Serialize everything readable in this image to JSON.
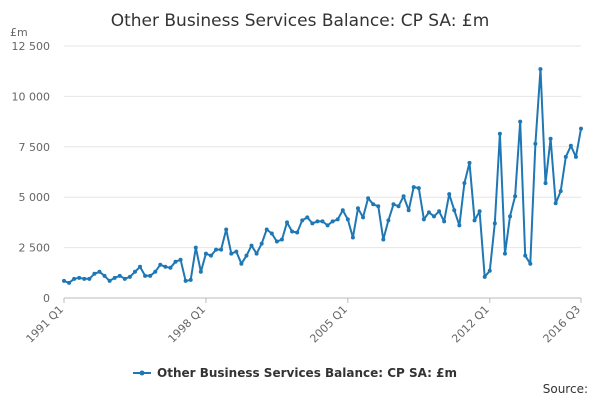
{
  "chart_data": {
    "type": "line",
    "title": "Other Business Services Balance: CP SA: £m",
    "ylabel": "£m",
    "ylim": [
      0,
      12500
    ],
    "yticks": [
      0,
      2500,
      5000,
      7500,
      10000,
      12500
    ],
    "ytick_labels": [
      "0",
      "2 500",
      "5 000",
      "7 500",
      "10 000",
      "12 500"
    ],
    "xticks": [
      "1991 Q1",
      "1998 Q1",
      "2005 Q1",
      "2012 Q1",
      "2016 Q3"
    ],
    "xtick_index": [
      0,
      28,
      56,
      84,
      102
    ],
    "grid": true,
    "legend_position": "bottom",
    "color": "#1f77b4",
    "series": [
      {
        "name": "Other Business Services Balance: CP SA: £m",
        "x": [
          "1991 Q1",
          "1991 Q2",
          "1991 Q3",
          "1991 Q4",
          "1992 Q1",
          "1992 Q2",
          "1992 Q3",
          "1992 Q4",
          "1993 Q1",
          "1993 Q2",
          "1993 Q3",
          "1993 Q4",
          "1994 Q1",
          "1994 Q2",
          "1994 Q3",
          "1994 Q4",
          "1995 Q1",
          "1995 Q2",
          "1995 Q3",
          "1995 Q4",
          "1996 Q1",
          "1996 Q2",
          "1996 Q3",
          "1996 Q4",
          "1997 Q1",
          "1997 Q2",
          "1997 Q3",
          "1997 Q4",
          "1998 Q1",
          "1998 Q2",
          "1998 Q3",
          "1998 Q4",
          "1999 Q1",
          "1999 Q2",
          "1999 Q3",
          "1999 Q4",
          "2000 Q1",
          "2000 Q2",
          "2000 Q3",
          "2000 Q4",
          "2001 Q1",
          "2001 Q2",
          "2001 Q3",
          "2001 Q4",
          "2002 Q1",
          "2002 Q2",
          "2002 Q3",
          "2002 Q4",
          "2003 Q1",
          "2003 Q2",
          "2003 Q3",
          "2003 Q4",
          "2004 Q1",
          "2004 Q2",
          "2004 Q3",
          "2004 Q4",
          "2005 Q1",
          "2005 Q2",
          "2005 Q3",
          "2005 Q4",
          "2006 Q1",
          "2006 Q2",
          "2006 Q3",
          "2006 Q4",
          "2007 Q1",
          "2007 Q2",
          "2007 Q3",
          "2007 Q4",
          "2008 Q1",
          "2008 Q2",
          "2008 Q3",
          "2008 Q4",
          "2009 Q1",
          "2009 Q2",
          "2009 Q3",
          "2009 Q4",
          "2010 Q1",
          "2010 Q2",
          "2010 Q3",
          "2010 Q4",
          "2011 Q1",
          "2011 Q2",
          "2011 Q3",
          "2011 Q4",
          "2012 Q1",
          "2012 Q2",
          "2012 Q3",
          "2012 Q4",
          "2013 Q1",
          "2013 Q2",
          "2013 Q3",
          "2013 Q4",
          "2014 Q1",
          "2014 Q2",
          "2014 Q3",
          "2014 Q4",
          "2015 Q1",
          "2015 Q2",
          "2015 Q3",
          "2015 Q4",
          "2016 Q1",
          "2016 Q2",
          "2016 Q3"
        ],
        "values": [
          850,
          750,
          950,
          1000,
          950,
          950,
          1200,
          1300,
          1100,
          850,
          1000,
          1100,
          950,
          1050,
          1300,
          1550,
          1100,
          1100,
          1300,
          1650,
          1550,
          1500,
          1800,
          1900,
          850,
          900,
          2500,
          1300,
          2200,
          2100,
          2400,
          2400,
          3400,
          2200,
          2300,
          1700,
          2100,
          2600,
          2200,
          2700,
          3400,
          3200,
          2800,
          2900,
          3750,
          3300,
          3250,
          3850,
          4000,
          3700,
          3800,
          3800,
          3600,
          3800,
          3900,
          4350,
          3900,
          3000,
          4450,
          4000,
          4950,
          4650,
          4550,
          2900,
          3850,
          4650,
          4550,
          5050,
          4350,
          5500,
          5450,
          3900,
          4250,
          4050,
          4300,
          3800,
          5150,
          4350,
          3600,
          5700,
          6700,
          3850,
          4300,
          1050,
          1350,
          3700,
          8150,
          2200,
          4050,
          5050,
          8750,
          2100,
          1700,
          7650,
          11350,
          5700,
          7900,
          4700,
          5300,
          7000,
          7550,
          7000,
          8400
        ]
      }
    ]
  },
  "legend": {
    "label": "Other Business Services Balance: CP SA: £m"
  },
  "source": {
    "label": "Source:"
  }
}
